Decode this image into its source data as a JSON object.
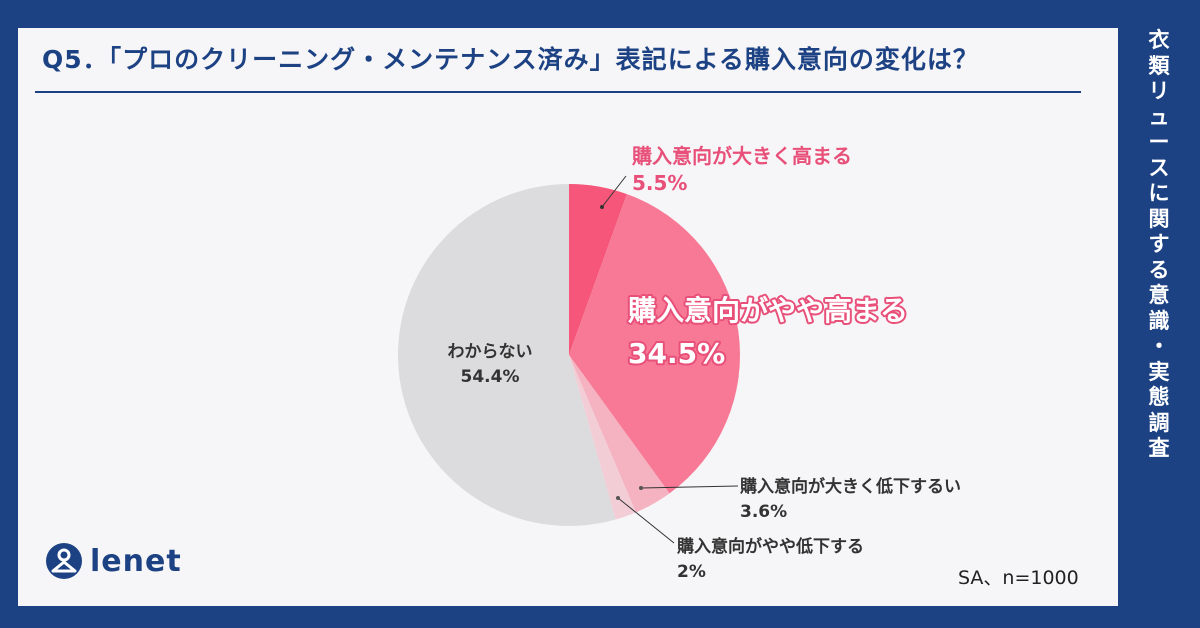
{
  "title": "Q5．「プロのクリーニング・メンテナンス済み」表記による購入意向の変化は？",
  "sidebar_chars": [
    "衣",
    "類",
    "リ",
    "ュ",
    "ー",
    "ス",
    "に",
    "関",
    "す",
    "る",
    "意",
    "識",
    "・",
    "実",
    "態",
    "調",
    "査"
  ],
  "logo_text": "lenet",
  "note": "SA、n=1000",
  "colors": {
    "frame": "#1d4284",
    "card": "#f6f5f7",
    "pink": "#e8507a"
  },
  "chart_data": {
    "type": "pie",
    "title": "Q5．「プロのクリーニング・メンテナンス済み」表記による購入意向の変化は？",
    "start": "top, clockwise",
    "slices": [
      {
        "label": "購入意向が大きく高まる",
        "value": 5.5,
        "display": "5.5%",
        "color": "#f55679"
      },
      {
        "label": "購入意向がやや高まる",
        "value": 34.5,
        "display": "34.5%",
        "color": "#f77995"
      },
      {
        "label": "購入意向が大きく低下するい",
        "value": 3.6,
        "display": "3.6%",
        "color": "#f5b2c1"
      },
      {
        "label": "購入意向がやや低下する",
        "value": 2,
        "display": "2%",
        "color": "#f3cdd6"
      },
      {
        "label": "わからない",
        "value": 54.4,
        "display": "54.4%",
        "color": "#dcdbdd"
      }
    ]
  }
}
